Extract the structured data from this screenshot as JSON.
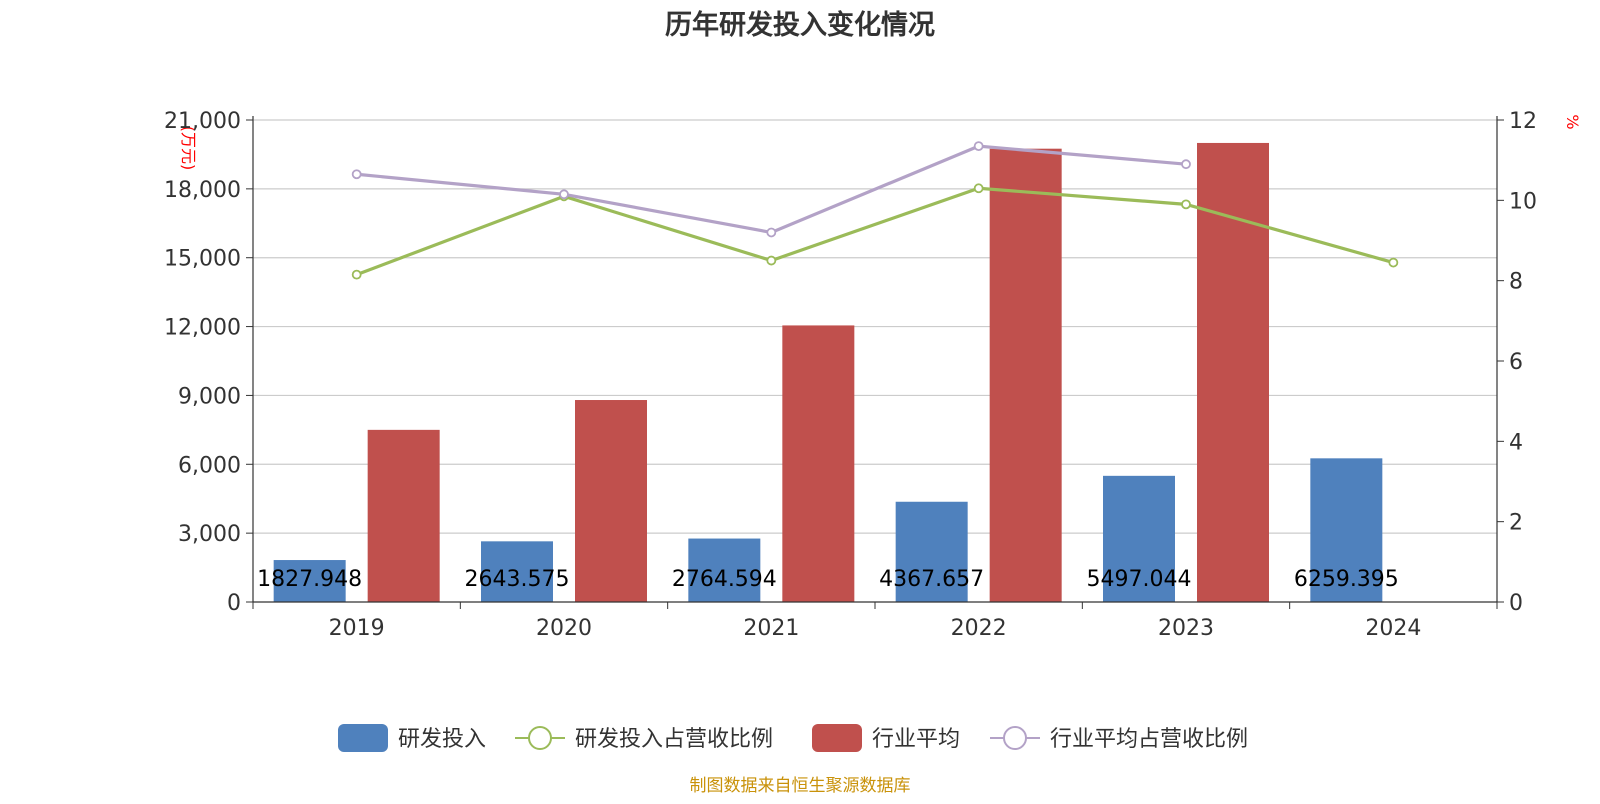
{
  "chart_data": {
    "type": "bar",
    "title": "历年研发投入变化情况",
    "y_left_unit": "(万元)",
    "y_right_unit": "%",
    "categories": [
      "2019",
      "2020",
      "2021",
      "2022",
      "2023",
      "2024"
    ],
    "ylim_left": [
      0,
      21000
    ],
    "yticks_left": [
      0,
      3000,
      6000,
      9000,
      12000,
      15000,
      18000,
      21000
    ],
    "ytick_labels_left": [
      "0",
      "3,000",
      "6,000",
      "9,000",
      "12,000",
      "15,000",
      "18,000",
      "21,000"
    ],
    "ylim_right": [
      0,
      12
    ],
    "yticks_right": [
      0,
      2,
      4,
      6,
      8,
      10,
      12
    ],
    "ytick_labels_right": [
      "0",
      "2",
      "4",
      "6",
      "8",
      "10",
      "12"
    ],
    "grid": true,
    "legend_position": "bottom-center",
    "series": [
      {
        "name": "研发投入",
        "kind": "bar",
        "axis": "left",
        "color": "#4F81BD",
        "values": [
          1827.948,
          2643.575,
          2764.594,
          4367.657,
          5497.044,
          6259.395
        ],
        "labels": [
          "1827.948",
          "2643.575",
          "2764.594",
          "4367.657",
          "5497.044",
          "6259.395"
        ]
      },
      {
        "name": "研发投入占营收比例",
        "kind": "line",
        "axis": "right",
        "color": "#9BBB59",
        "values": [
          8.15,
          10.1,
          8.5,
          10.3,
          9.9,
          8.45
        ]
      },
      {
        "name": "行业平均",
        "kind": "bar",
        "axis": "left",
        "color": "#C0504D",
        "values": [
          7500,
          8800,
          12050,
          19750,
          20000,
          null
        ]
      },
      {
        "name": "行业平均占营收比例",
        "kind": "line",
        "axis": "right",
        "color": "#B3A2C7",
        "values": [
          10.65,
          10.15,
          9.2,
          11.35,
          10.9,
          null
        ]
      }
    ]
  },
  "footer": {
    "source": "制图数据来自恒生聚源数据库",
    "source_color": "#C9920A"
  }
}
